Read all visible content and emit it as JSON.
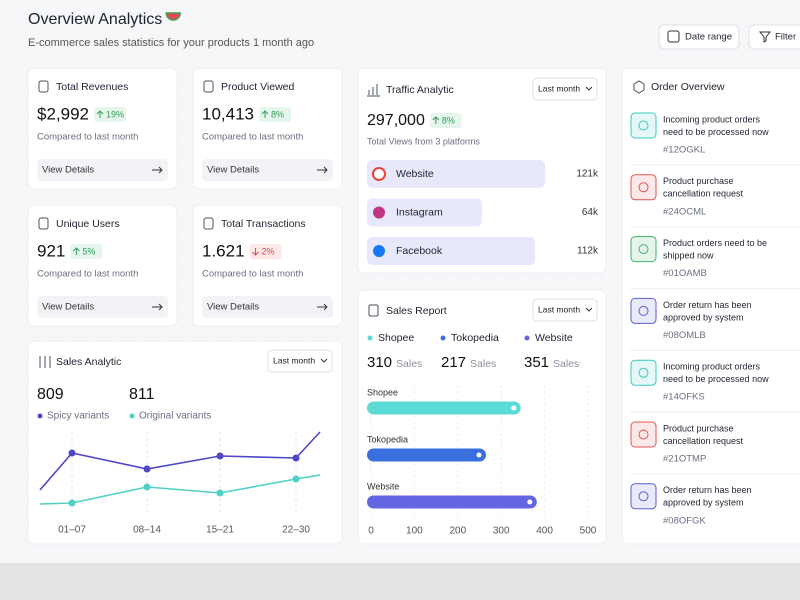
{
  "header": {
    "title": "Overview Analytics",
    "subtitle": "E-commerce sales statistics for your products 1 month ago",
    "date_button": "Date range",
    "filter_button": "Filter"
  },
  "stats": [
    {
      "title": "Total Revenues",
      "value": "$2,992",
      "change": "19%",
      "trend": "up",
      "caption": "Compared to last month",
      "action": "View Details"
    },
    {
      "title": "Product Viewed",
      "value": "10,413",
      "change": "8%",
      "trend": "up",
      "caption": "Compared to last month",
      "action": "View Details"
    },
    {
      "title": "Unique Users",
      "value": "921",
      "change": "5%",
      "trend": "up",
      "caption": "Compared to last month",
      "action": "View Details"
    },
    {
      "title": "Total Transactions",
      "value": "1.621",
      "change": "2%",
      "trend": "down",
      "caption": "Compared to last month",
      "action": "View Details"
    }
  ],
  "chart_data": [
    {
      "type": "bar",
      "title": "Traffic Analytic",
      "period": "Last month",
      "total": "297,000",
      "change": "8%",
      "caption": "Total Views from 3 platforms",
      "categories": [
        "Website",
        "Instagram",
        "Facebook"
      ],
      "values": [
        121000,
        64000,
        112000
      ],
      "value_labels": [
        "121k",
        "64k",
        "112k"
      ],
      "color": "#e7e8fb"
    },
    {
      "type": "bar",
      "title": "Sales Report",
      "period": "Last month",
      "categories": [
        "Shopee",
        "Tokopedia",
        "Website"
      ],
      "totals": [
        310,
        217,
        351
      ],
      "unit": "Sales",
      "values": [
        345,
        265,
        382
      ],
      "colors": [
        "#5cdad6",
        "#3a6fe0",
        "#6366e0"
      ],
      "xlim": [
        0,
        500
      ],
      "xticks": [
        0,
        100,
        200,
        300,
        400,
        500
      ],
      "grid": true
    },
    {
      "type": "line",
      "title": "Sales Analytic",
      "period": "Last month",
      "categories": [
        null,
        "01–07",
        "08–14",
        "15–21",
        "22–30",
        null
      ],
      "series": [
        {
          "name": "Spicy variants",
          "total": 809,
          "color": "#4f46c8",
          "values": [
            30,
            67,
            51,
            64,
            62,
            88
          ]
        },
        {
          "name": "Original variants",
          "total": 811,
          "color": "#4fd1c5",
          "values": [
            16,
            17,
            33,
            27,
            41,
            45
          ]
        }
      ],
      "ylim": [
        0,
        100
      ],
      "grid": true
    }
  ],
  "orders": {
    "title": "Order Overview",
    "items": [
      {
        "lines": [
          "Incoming product orders",
          "need to be processed now"
        ],
        "id": "#12OGKL",
        "color": "#3cc9c0"
      },
      {
        "lines": [
          "Product purchase",
          "cancellation request"
        ],
        "id": "#24OCML",
        "color": "#e05656"
      },
      {
        "lines": [
          "Product orders need to be",
          "shipped now"
        ],
        "id": "#01OAMB",
        "color": "#3fb56b"
      },
      {
        "lines": [
          "Order return has been",
          "approved by system"
        ],
        "id": "#08OMLB",
        "color": "#5b5fd6"
      },
      {
        "lines": [
          "Incoming product orders",
          "need to be processed now"
        ],
        "id": "#14OFKS",
        "color": "#3cc9c0"
      },
      {
        "lines": [
          "Product purchase",
          "cancellation request"
        ],
        "id": "#21OTMP",
        "color": "#e05656"
      },
      {
        "lines": [
          "Order return has been",
          "approved by system"
        ],
        "id": "#08OFGK",
        "color": "#5b5fd6"
      }
    ]
  }
}
